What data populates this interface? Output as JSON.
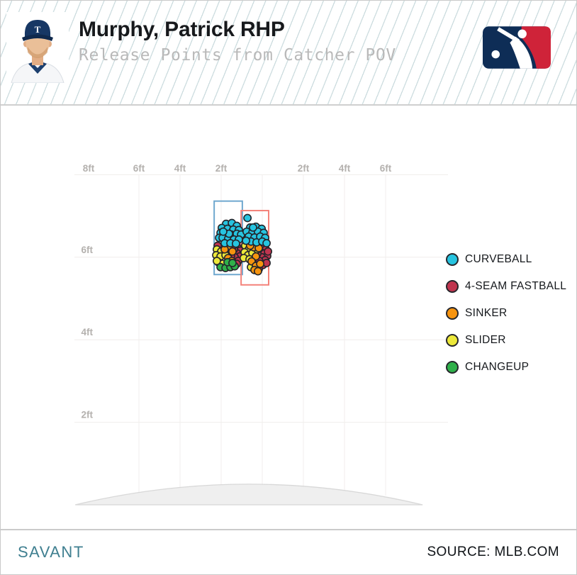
{
  "header": {
    "title": "Murphy, Patrick RHP",
    "subtitle": "Release Points from Catcher POV",
    "cap_letter": "T"
  },
  "footer": {
    "brand": "SAVANT",
    "source": "SOURCE: MLB.COM"
  },
  "chart_data": {
    "type": "scatter",
    "title": "Release Points from Catcher POV",
    "units": "feet",
    "grid": true,
    "legend_position": "right",
    "x_axis": {
      "side": "top",
      "range": [
        -8,
        8
      ],
      "gridlines": [
        -6,
        -4,
        -2,
        0,
        2,
        4,
        6
      ],
      "ticks": [
        {
          "v": -8,
          "label": "8ft"
        },
        {
          "v": -6,
          "label": "6ft"
        },
        {
          "v": -4,
          "label": "4ft"
        },
        {
          "v": -2,
          "label": "2ft"
        },
        {
          "v": 2,
          "label": "2ft"
        },
        {
          "v": 4,
          "label": "4ft"
        },
        {
          "v": 6,
          "label": "6ft"
        }
      ]
    },
    "y_axis": {
      "side": "left",
      "range": [
        0,
        8
      ],
      "gridlines": [
        2,
        4,
        6,
        8
      ],
      "ticks": [
        {
          "v": 6,
          "label": "6ft"
        },
        {
          "v": 4,
          "label": "4ft"
        },
        {
          "v": 2,
          "label": "2ft"
        }
      ]
    },
    "mound": {
      "x_range_ft": [
        -9.1,
        7.8
      ],
      "peak_height_ft": 0.5
    },
    "highlight_boxes": [
      {
        "name": "left-release-window",
        "color": "#6fa8cf",
        "x_ft": [
          -2.34,
          -0.97
        ],
        "y_ft": [
          5.58,
          7.36
        ]
      },
      {
        "name": "right-release-window",
        "color": "#f4827a",
        "x_ft": [
          -1.03,
          0.31
        ],
        "y_ft": [
          5.33,
          7.13
        ]
      }
    ],
    "series": [
      {
        "name": "CURVEBALL",
        "color": "#27c4e0",
        "points": [
          [
            -1.76,
            6.81
          ],
          [
            -1.48,
            6.83
          ],
          [
            -1.24,
            6.76
          ],
          [
            -1.97,
            6.71
          ],
          [
            -1.69,
            6.69
          ],
          [
            -1.41,
            6.67
          ],
          [
            -1.14,
            6.66
          ],
          [
            -2.03,
            6.59
          ],
          [
            -1.79,
            6.57
          ],
          [
            -1.52,
            6.55
          ],
          [
            -1.24,
            6.57
          ],
          [
            -1.03,
            6.55
          ],
          [
            -2.1,
            6.47
          ],
          [
            -1.93,
            6.47
          ],
          [
            -1.66,
            6.45
          ],
          [
            -1.38,
            6.43
          ],
          [
            -1.14,
            6.43
          ],
          [
            -1.83,
            6.34
          ],
          [
            -1.55,
            6.34
          ],
          [
            -1.28,
            6.33
          ],
          [
            -1.62,
            6.57
          ],
          [
            -1.9,
            6.62
          ],
          [
            -0.72,
            6.95
          ],
          [
            -0.59,
            6.72
          ],
          [
            -0.31,
            6.74
          ],
          [
            -0.03,
            6.69
          ],
          [
            -0.76,
            6.62
          ],
          [
            -0.48,
            6.6
          ],
          [
            -0.21,
            6.62
          ],
          [
            0.07,
            6.59
          ],
          [
            -0.66,
            6.5
          ],
          [
            -0.38,
            6.48
          ],
          [
            -0.1,
            6.5
          ],
          [
            0.14,
            6.47
          ],
          [
            -0.55,
            6.38
          ],
          [
            -0.28,
            6.36
          ],
          [
            0.0,
            6.38
          ],
          [
            0.21,
            6.34
          ],
          [
            -0.79,
            6.4
          ],
          [
            -0.45,
            6.72
          ]
        ]
      },
      {
        "name": "4-SEAM FASTBALL",
        "color": "#c0354f",
        "points": [
          [
            -2.17,
            6.28
          ],
          [
            -1.21,
            6.24
          ],
          [
            -1.07,
            6.16
          ],
          [
            -1.24,
            6.1
          ],
          [
            -1.1,
            6.02
          ],
          [
            -1.34,
            6.0
          ],
          [
            -1.17,
            5.91
          ],
          [
            -1.69,
            6.1
          ],
          [
            -1.52,
            6.03
          ],
          [
            -1.38,
            6.19
          ],
          [
            -1.24,
            5.84
          ],
          [
            -1.45,
            6.26
          ],
          [
            -1.59,
            6.16
          ],
          [
            0.0,
            6.26
          ],
          [
            0.17,
            6.19
          ],
          [
            -0.1,
            6.14
          ],
          [
            0.1,
            6.09
          ],
          [
            0.24,
            6.03
          ],
          [
            -0.03,
            6.0
          ],
          [
            0.14,
            5.93
          ],
          [
            -0.14,
            5.91
          ],
          [
            0.03,
            5.81
          ],
          [
            -0.24,
            6.09
          ],
          [
            -0.07,
            6.31
          ],
          [
            -0.17,
            5.71
          ],
          [
            0.28,
            6.14
          ],
          [
            0.21,
            5.86
          ]
        ]
      },
      {
        "name": "SINKER",
        "color": "#f7940f",
        "points": [
          [
            -1.62,
            6.22
          ],
          [
            -1.83,
            6.19
          ],
          [
            -1.45,
            6.14
          ],
          [
            -1.66,
            5.98
          ],
          [
            -1.48,
            5.91
          ],
          [
            -0.41,
            6.24
          ],
          [
            -0.17,
            6.22
          ],
          [
            -0.59,
            6.28
          ],
          [
            -0.31,
            6.02
          ],
          [
            -0.52,
            5.9
          ],
          [
            -0.31,
            5.79
          ],
          [
            -0.1,
            5.84
          ],
          [
            -0.38,
            5.69
          ],
          [
            -0.21,
            5.66
          ]
        ]
      },
      {
        "name": "SLIDER",
        "color": "#ece83a",
        "points": [
          [
            -2.21,
            6.19
          ],
          [
            -2.0,
            6.14
          ],
          [
            -2.24,
            6.05
          ],
          [
            -2.03,
            6.02
          ],
          [
            -1.79,
            6.05
          ],
          [
            -2.14,
            5.88
          ],
          [
            -1.93,
            5.84
          ],
          [
            -2.21,
            5.91
          ],
          [
            -0.83,
            6.28
          ],
          [
            -0.66,
            6.19
          ],
          [
            -0.86,
            6.12
          ],
          [
            -0.69,
            6.05
          ],
          [
            -0.48,
            6.1
          ],
          [
            -0.9,
            5.98
          ],
          [
            -0.62,
            5.95
          ],
          [
            -0.55,
            5.76
          ],
          [
            -0.24,
            6.19
          ]
        ]
      },
      {
        "name": "CHANGEUP",
        "color": "#2fb04a",
        "points": [
          [
            -2.03,
            5.76
          ],
          [
            -1.79,
            5.74
          ],
          [
            -1.55,
            5.76
          ],
          [
            -1.34,
            5.78
          ],
          [
            -1.69,
            5.88
          ],
          [
            -1.45,
            5.86
          ]
        ]
      }
    ]
  }
}
